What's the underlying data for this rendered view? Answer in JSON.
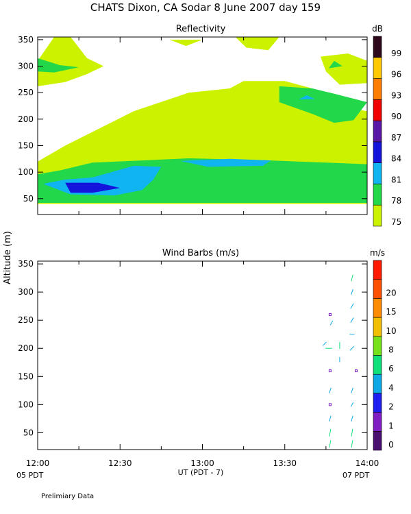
{
  "header": {
    "title": "CHATS Dixon, CA  Sodar    8 June 2007   day 159",
    "ylabel": "Altitude (m)",
    "xlabel": "UT  (PDT - 7)",
    "left_local": "05 PDT",
    "right_local": "07 PDT",
    "footer": "Prelimiary Data"
  },
  "chart_data": [
    {
      "type": "heatmap",
      "title": "Reflectivity",
      "xlim": [
        0,
        120
      ],
      "ylim": [
        20,
        355
      ],
      "x_ticks": [
        "12:00",
        "12:30",
        "13:00",
        "13:30",
        "14:00"
      ],
      "y_ticks": [
        50,
        100,
        150,
        200,
        250,
        300,
        350
      ],
      "colorbar": {
        "unit": "dB",
        "levels": [
          75,
          78,
          81,
          84,
          87,
          90,
          93,
          96,
          99
        ],
        "colors": [
          "#ccf200",
          "#22d84a",
          "#10b4f0",
          "#1414dc",
          "#5a16a4",
          "#f00000",
          "#ff7e00",
          "#ffc800",
          "#30081c"
        ]
      },
      "regions": [
        {
          "level": 75,
          "points": [
            [
              0,
              40
            ],
            [
              120,
              40
            ],
            [
              120,
              215
            ],
            [
              107,
              226
            ],
            [
              100,
              258
            ],
            [
              90,
              272
            ],
            [
              75,
              272
            ],
            [
              70,
              258
            ],
            [
              55,
              250
            ],
            [
              35,
              215
            ],
            [
              10,
              150
            ],
            [
              0,
              120
            ]
          ]
        },
        {
          "level": 75,
          "points": [
            [
              0,
              310
            ],
            [
              6,
              355
            ],
            [
              12,
              355
            ],
            [
              18,
              315
            ],
            [
              24,
              300
            ],
            [
              18,
              285
            ],
            [
              10,
              270
            ],
            [
              0,
              262
            ]
          ]
        },
        {
          "level": 75,
          "points": [
            [
              48,
              350
            ],
            [
              54,
              338
            ],
            [
              60,
              350
            ]
          ]
        },
        {
          "level": 75,
          "points": [
            [
              72,
              355
            ],
            [
              88,
              355
            ],
            [
              84,
              330
            ],
            [
              76,
              335
            ]
          ]
        },
        {
          "level": 75,
          "points": [
            [
              103,
              318
            ],
            [
              113,
              324
            ],
            [
              120,
              310
            ],
            [
              120,
              268
            ],
            [
              110,
              265
            ],
            [
              105,
              290
            ]
          ]
        },
        {
          "level": 78,
          "points": [
            [
              0,
              42
            ],
            [
              18,
              42
            ],
            [
              60,
              42
            ],
            [
              110,
              42
            ],
            [
              120,
              42
            ],
            [
              120,
              115
            ],
            [
              105,
              118
            ],
            [
              80,
              123
            ],
            [
              55,
              126
            ],
            [
              38,
              122
            ],
            [
              20,
              118
            ],
            [
              8,
              103
            ],
            [
              0,
              96
            ]
          ]
        },
        {
          "level": 78,
          "points": [
            [
              0,
              315
            ],
            [
              8,
              302
            ],
            [
              15,
              298
            ],
            [
              6,
              288
            ],
            [
              0,
              290
            ]
          ]
        },
        {
          "level": 78,
          "points": [
            [
              88,
              262
            ],
            [
              100,
              258
            ],
            [
              108,
              248
            ],
            [
              120,
              232
            ],
            [
              115,
              198
            ],
            [
              108,
              193
            ],
            [
              100,
              210
            ],
            [
              88,
              232
            ]
          ]
        },
        {
          "level": 78,
          "points": [
            [
              106,
              296
            ],
            [
              108,
              310
            ],
            [
              111,
              300
            ]
          ]
        },
        {
          "level": 81,
          "points": [
            [
              2,
              78
            ],
            [
              12,
              58
            ],
            [
              28,
              56
            ],
            [
              38,
              66
            ],
            [
              42,
              85
            ],
            [
              45,
              110
            ],
            [
              35,
              112
            ],
            [
              20,
              90
            ],
            [
              10,
              86
            ]
          ]
        },
        {
          "level": 81,
          "points": [
            [
              52,
              121
            ],
            [
              70,
              125
            ],
            [
              85,
              122
            ],
            [
              82,
              112
            ],
            [
              62,
              110
            ]
          ]
        },
        {
          "level": 81,
          "points": [
            [
              95,
              237
            ],
            [
              98,
              245
            ],
            [
              101,
              238
            ]
          ]
        },
        {
          "level": 84,
          "points": [
            [
              10,
              80
            ],
            [
              22,
              80
            ],
            [
              30,
              70
            ],
            [
              20,
              61
            ],
            [
              12,
              61
            ]
          ]
        }
      ]
    },
    {
      "type": "scatter",
      "title": "Wind Barbs (m/s)",
      "xlim": [
        0,
        120
      ],
      "ylim": [
        20,
        355
      ],
      "x_ticks": [
        "12:00",
        "12:30",
        "13:00",
        "13:30",
        "14:00"
      ],
      "y_ticks": [
        50,
        100,
        150,
        200,
        250,
        300,
        350
      ],
      "colorbar": {
        "unit": "m/s",
        "levels": [
          0,
          1,
          2,
          4,
          6,
          8,
          10,
          15,
          20
        ],
        "colors": [
          "#4b0f6f",
          "#8020c4",
          "#1e1ef0",
          "#0fa8e6",
          "#10e07a",
          "#78e01a",
          "#f0c000",
          "#ff8c00",
          "#ff5000",
          "#ff1a00"
        ]
      },
      "barbs": [
        {
          "x": 106.5,
          "y": 30,
          "speed": 5,
          "angle": 80
        },
        {
          "x": 106.5,
          "y": 50,
          "speed": 5,
          "angle": 80
        },
        {
          "x": 106.5,
          "y": 75,
          "speed": 3,
          "angle": 75
        },
        {
          "x": 106.5,
          "y": 100,
          "speed": 0.3,
          "angle": 0
        },
        {
          "x": 106.5,
          "y": 125,
          "speed": 3,
          "angle": 70
        },
        {
          "x": 106.5,
          "y": 160,
          "speed": 0.3,
          "angle": 0
        },
        {
          "x": 106.0,
          "y": 200,
          "speed": 4,
          "angle": 0
        },
        {
          "x": 107.0,
          "y": 245,
          "speed": 2,
          "angle": 60
        },
        {
          "x": 106.5,
          "y": 260,
          "speed": 0.5,
          "angle": 0
        },
        {
          "x": 114.5,
          "y": 30,
          "speed": 5,
          "angle": 80
        },
        {
          "x": 114.5,
          "y": 50,
          "speed": 5,
          "angle": 80
        },
        {
          "x": 114.5,
          "y": 75,
          "speed": 3,
          "angle": 75
        },
        {
          "x": 114.5,
          "y": 100,
          "speed": 2,
          "angle": 60
        },
        {
          "x": 114.5,
          "y": 125,
          "speed": 3,
          "angle": 70
        },
        {
          "x": 116.0,
          "y": 160,
          "speed": 0.3,
          "angle": 0
        },
        {
          "x": 114.5,
          "y": 200,
          "speed": 3,
          "angle": 45
        },
        {
          "x": 114.5,
          "y": 225,
          "speed": 2,
          "angle": 0
        },
        {
          "x": 114.5,
          "y": 250,
          "speed": 3,
          "angle": 60
        },
        {
          "x": 114.5,
          "y": 275,
          "speed": 3,
          "angle": 60
        },
        {
          "x": 114.5,
          "y": 300,
          "speed": 3,
          "angle": 70
        },
        {
          "x": 114.5,
          "y": 325,
          "speed": 4,
          "angle": 75
        },
        {
          "x": 110.0,
          "y": 205,
          "speed": 4,
          "angle": 90
        },
        {
          "x": 110.0,
          "y": 180,
          "speed": 2,
          "angle": 90
        },
        {
          "x": 104.5,
          "y": 208,
          "speed": 2,
          "angle": 45
        }
      ]
    }
  ]
}
